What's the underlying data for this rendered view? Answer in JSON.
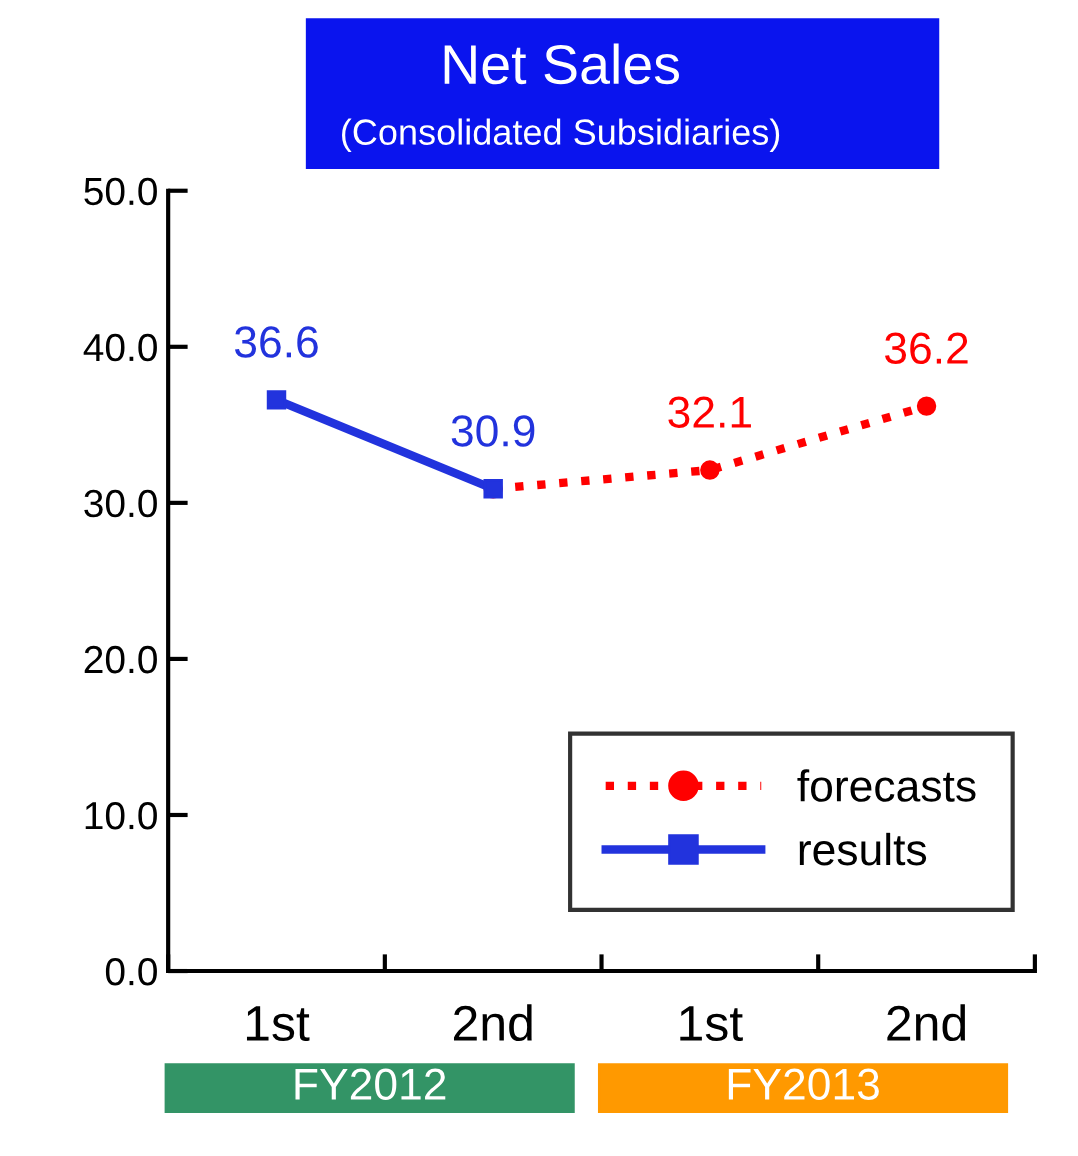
{
  "chart_data": {
    "type": "line",
    "title": "Net Sales",
    "subtitle": "(Consolidated Subsidiaries)",
    "categories": [
      "1st",
      "2nd",
      "1st",
      "2nd"
    ],
    "series": [
      {
        "name": "forecasts",
        "color": "#ff0000",
        "values": [
          null,
          30.9,
          32.1,
          36.2
        ],
        "value_labels": [
          null,
          null,
          "32.1",
          "36.2"
        ],
        "marker": "circle",
        "line_style": "dotted"
      },
      {
        "name": "results",
        "color": "#2233dd",
        "values": [
          36.6,
          30.9,
          null,
          null
        ],
        "value_labels": [
          "36.6",
          "30.9",
          null,
          null
        ],
        "marker": "square",
        "line_style": "solid"
      }
    ],
    "ylim": [
      0,
      50
    ],
    "yticks": [
      {
        "value": 0,
        "label": "0.0"
      },
      {
        "value": 10,
        "label": "10.0"
      },
      {
        "value": 20,
        "label": "20.0"
      },
      {
        "value": 30,
        "label": "30.0"
      },
      {
        "value": 40,
        "label": "40.0"
      },
      {
        "value": 50,
        "label": "50.0"
      }
    ],
    "annotations": [
      "FY2012",
      "FY2013"
    ],
    "legend": "bottom right",
    "grid": false
  }
}
